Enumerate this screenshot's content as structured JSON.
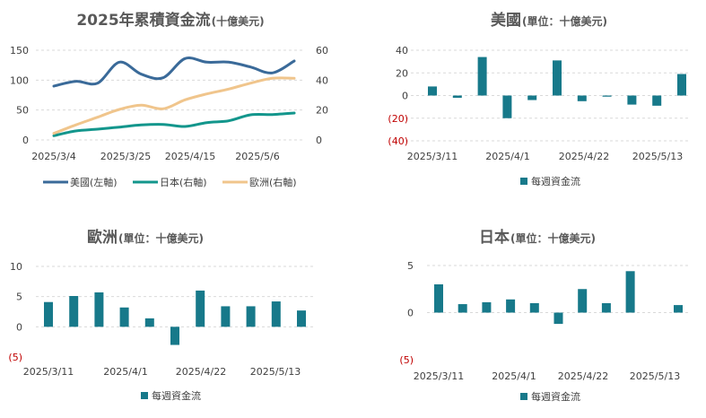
{
  "colors": {
    "us": "#3a6a99",
    "japan": "#13968c",
    "europe": "#f0c58c",
    "bar": "#17798a",
    "negative_label": "#c00000"
  },
  "chart_data": [
    {
      "id": "cumulative",
      "type": "line",
      "title": "2025年累積資金流",
      "title_unit": "(十億美元)",
      "x_tick_labels": [
        "2025/3/4",
        "2025/3/25",
        "2025/4/15",
        "2025/5/6"
      ],
      "y_left_ticks": [
        "0",
        "50",
        "100",
        "150"
      ],
      "y_left_lim": [
        0,
        150
      ],
      "y_right_ticks": [
        "0",
        "20",
        "40",
        "60"
      ],
      "y_right_lim": [
        0,
        60
      ],
      "legend_position": "bottom",
      "grid": true,
      "series": [
        {
          "name": "美國(左軸)",
          "axis": "left",
          "color": "#3a6a99",
          "values": [
            90,
            98,
            95,
            130,
            110,
            104,
            136,
            130,
            130,
            122,
            112,
            132
          ]
        },
        {
          "name": "日本(右軸)",
          "axis": "right",
          "color": "#13968c",
          "values": [
            2.8,
            6,
            7.2,
            8.6,
            10,
            10.4,
            9,
            11.6,
            12.8,
            16.8,
            17,
            18
          ]
        },
        {
          "name": "歐洲(右軸)",
          "axis": "right",
          "color": "#f0c58c",
          "values": [
            4.4,
            10,
            15.2,
            20.4,
            23.2,
            20.8,
            26.8,
            30.8,
            34,
            38,
            41.2,
            41.2
          ]
        }
      ]
    },
    {
      "id": "us",
      "type": "bar",
      "title": "美國",
      "title_unit": "(單位：十億美元)",
      "x_tick_labels": [
        "2025/3/11",
        "2025/4/1",
        "2025/4/22",
        "2025/5/13"
      ],
      "y_ticks": [
        "(40)",
        "(20)",
        "0",
        "20",
        "40"
      ],
      "ylim": [
        -40,
        40
      ],
      "legend": "每週資金流",
      "grid": true,
      "values": [
        8,
        -2,
        34,
        -20,
        -4,
        31,
        -5,
        -1,
        -8,
        -9,
        19
      ]
    },
    {
      "id": "europe",
      "type": "bar",
      "title": "歐洲",
      "title_unit": "(單位：十億美元)",
      "x_tick_labels": [
        "2025/3/11",
        "2025/4/1",
        "2025/4/22",
        "2025/5/13"
      ],
      "y_ticks": [
        "(5)",
        "0",
        "5",
        "10"
      ],
      "ylim": [
        -5,
        10
      ],
      "legend": "每週資金流",
      "grid": true,
      "values": [
        4.1,
        5.1,
        5.7,
        3.2,
        1.4,
        -3.0,
        6.0,
        3.4,
        3.4,
        4.2,
        2.7
      ]
    },
    {
      "id": "japan",
      "type": "bar",
      "title": "日本",
      "title_unit": "(單位：十億美元)",
      "x_tick_labels": [
        "2025/3/11",
        "2025/4/1",
        "2025/4/22",
        "2025/5/13"
      ],
      "y_ticks": [
        "(5)",
        "0",
        "5"
      ],
      "ylim": [
        -5,
        5
      ],
      "legend": "每週資金流",
      "grid": true,
      "values": [
        3.0,
        0.9,
        1.1,
        1.4,
        1.0,
        -1.2,
        2.5,
        1.0,
        4.4,
        0,
        0.8
      ]
    }
  ]
}
